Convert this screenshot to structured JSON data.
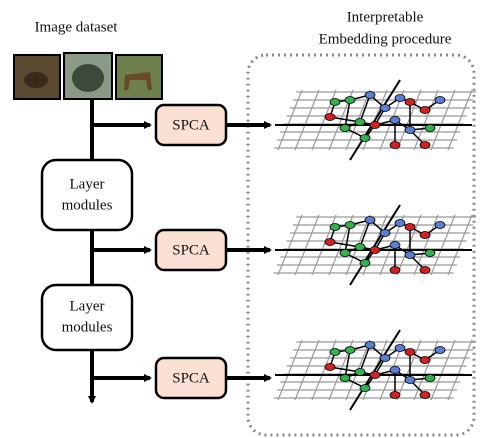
{
  "dataset_label": "Image dataset",
  "procedure_label": [
    "Interpretable",
    "Embedding procedure"
  ],
  "spca": [
    "SPCA",
    "SPCA",
    "SPCA"
  ],
  "layer_modules": [
    [
      "Layer",
      "modules"
    ],
    [
      "Layer",
      "modules"
    ]
  ]
}
